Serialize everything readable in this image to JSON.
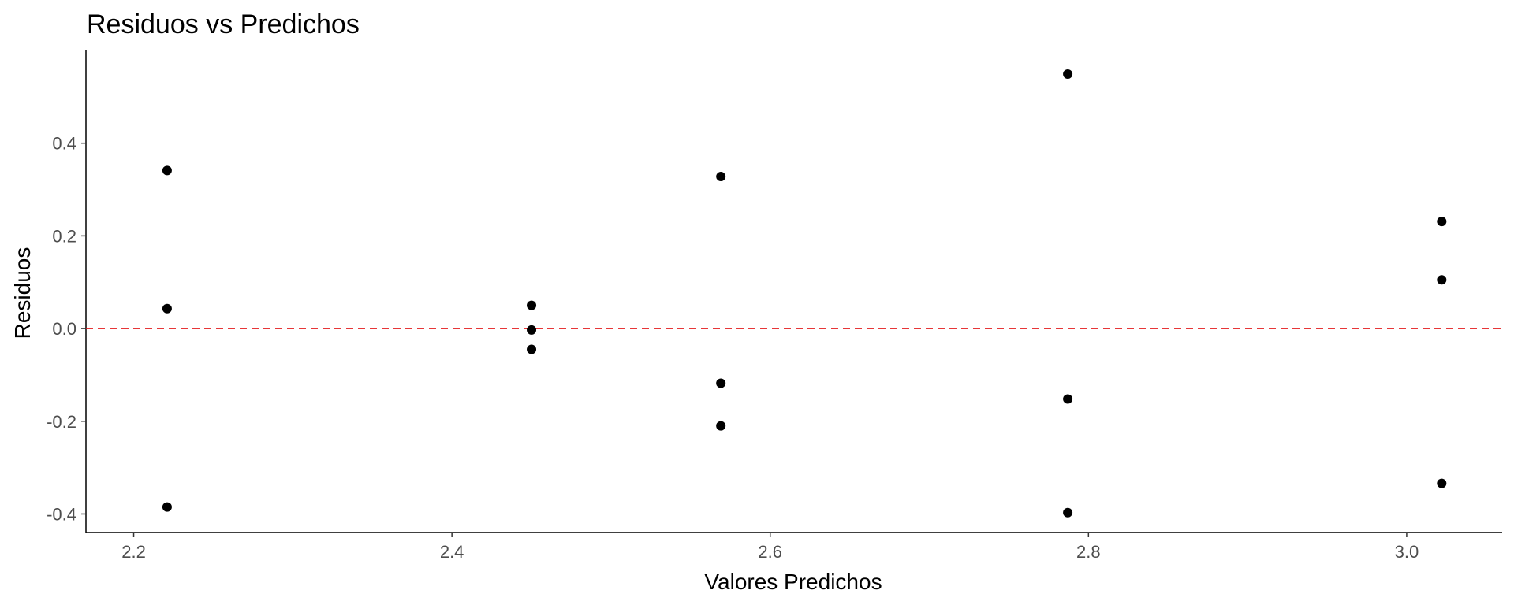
{
  "chart_data": {
    "type": "scatter",
    "title": "Residuos vs Predichos",
    "xlabel": "Valores Predichos",
    "ylabel": "Residuos",
    "xlim": [
      2.17,
      3.06
    ],
    "ylim": [
      -0.44,
      0.6
    ],
    "x_ticks": [
      2.2,
      2.4,
      2.6,
      2.8,
      3.0
    ],
    "x_tick_labels": [
      "2.2",
      "2.4",
      "2.6",
      "2.8",
      "3.0"
    ],
    "y_ticks": [
      -0.4,
      -0.2,
      0.0,
      0.2,
      0.4
    ],
    "y_tick_labels": [
      "-0.4",
      "-0.2",
      "0.0",
      "0.2",
      "0.4"
    ],
    "grid": false,
    "reference_line": {
      "y": 0,
      "style": "dashed",
      "color": "#e41a1c"
    },
    "point_color": "#000000",
    "points": [
      {
        "x": 2.221,
        "y": 0.341
      },
      {
        "x": 2.221,
        "y": 0.043
      },
      {
        "x": 2.221,
        "y": -0.385
      },
      {
        "x": 2.45,
        "y": 0.05
      },
      {
        "x": 2.45,
        "y": -0.003
      },
      {
        "x": 2.45,
        "y": -0.045
      },
      {
        "x": 2.569,
        "y": 0.328
      },
      {
        "x": 2.569,
        "y": -0.118
      },
      {
        "x": 2.569,
        "y": -0.21
      },
      {
        "x": 2.787,
        "y": 0.549
      },
      {
        "x": 2.787,
        "y": -0.152
      },
      {
        "x": 2.787,
        "y": -0.397
      },
      {
        "x": 3.022,
        "y": 0.231
      },
      {
        "x": 3.022,
        "y": 0.105
      },
      {
        "x": 3.022,
        "y": -0.334
      }
    ]
  }
}
